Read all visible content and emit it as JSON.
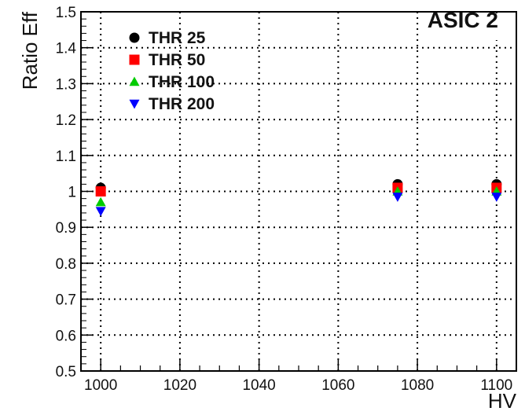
{
  "chart_data": {
    "type": "scatter",
    "title": "ASIC 2",
    "xlabel": "HV",
    "ylabel": "Ratio Eff",
    "xlim": [
      995,
      1105
    ],
    "ylim": [
      0.5,
      1.5
    ],
    "x_ticks": [
      1000,
      1020,
      1040,
      1060,
      1080,
      1100
    ],
    "y_ticks": [
      0.5,
      0.6,
      0.7,
      0.8,
      0.9,
      1,
      1.1,
      1.2,
      1.3,
      1.4,
      1.5
    ],
    "grid": true,
    "legend_position": "top-left",
    "series": [
      {
        "name": "THR 25",
        "color": "#000000",
        "marker": "circle",
        "x": [
          1000,
          1075,
          1100
        ],
        "y": [
          1.01,
          1.02,
          1.02
        ]
      },
      {
        "name": "THR 50",
        "color": "#ff0000",
        "marker": "square",
        "x": [
          1000,
          1075,
          1100
        ],
        "y": [
          1.0,
          1.01,
          1.01
        ]
      },
      {
        "name": "THR 100",
        "color": "#00cc00",
        "marker": "triangle-up",
        "x": [
          1000,
          1075,
          1100
        ],
        "y": [
          0.97,
          1.0,
          1.0
        ]
      },
      {
        "name": "THR 200",
        "color": "#0000ff",
        "marker": "triangle-down",
        "x": [
          1000,
          1075,
          1100
        ],
        "y": [
          0.945,
          0.985,
          0.985
        ]
      }
    ]
  }
}
